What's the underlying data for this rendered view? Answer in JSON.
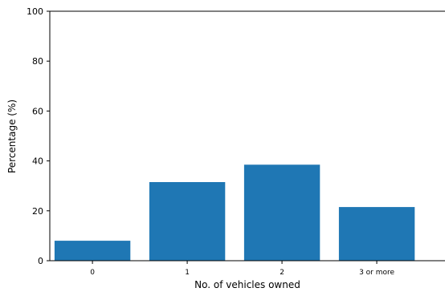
{
  "chart_data": {
    "type": "bar",
    "categories": [
      "0",
      "1",
      "2",
      "3 or more"
    ],
    "values": [
      8,
      31.5,
      38.5,
      21.5
    ],
    "xlabel": "No. of vehicles owned",
    "ylabel": "Percentage (%)",
    "ylim": [
      0,
      100
    ],
    "yticks": [
      0,
      20,
      40,
      60,
      80,
      100
    ],
    "grid": false,
    "bar_color": "#1f77b4"
  }
}
